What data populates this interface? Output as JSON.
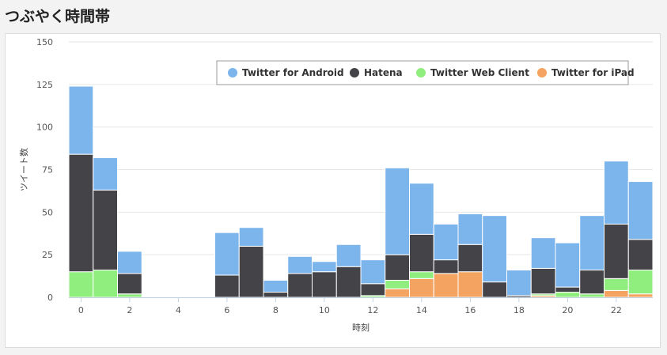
{
  "page": {
    "title": "つぶやく時間帯"
  },
  "chart_data": {
    "type": "bar",
    "stacked": true,
    "xlabel": "時刻",
    "ylabel": "ツイート数",
    "ylim": [
      0,
      150
    ],
    "yticks": [
      0,
      25,
      50,
      75,
      100,
      125,
      150
    ],
    "x": [
      0,
      1,
      2,
      3,
      4,
      5,
      6,
      7,
      8,
      9,
      10,
      11,
      12,
      13,
      14,
      15,
      16,
      17,
      18,
      19,
      20,
      21,
      22,
      23
    ],
    "xtick_labels": [
      0,
      2,
      4,
      6,
      8,
      10,
      12,
      14,
      16,
      18,
      20,
      22
    ],
    "grid": true,
    "legend_position": "top-right",
    "series": [
      {
        "name": "Twitter for iPad",
        "color": "#f4a460",
        "values": [
          0,
          0,
          0,
          0,
          0,
          0,
          0,
          0,
          0,
          0,
          0,
          0,
          0,
          5,
          11,
          14,
          15,
          0,
          0,
          1,
          0,
          0,
          4,
          2
        ]
      },
      {
        "name": "Twitter Web Client",
        "color": "#90ee7e",
        "values": [
          15,
          16,
          2,
          0,
          0,
          0,
          0,
          0,
          0,
          0,
          0,
          0,
          1,
          5,
          4,
          0,
          0,
          0,
          0,
          1,
          3,
          2,
          7,
          14
        ]
      },
      {
        "name": "Hatena",
        "color": "#434348",
        "values": [
          69,
          47,
          12,
          0,
          0,
          0,
          13,
          30,
          3,
          14,
          15,
          18,
          7,
          15,
          22,
          8,
          16,
          9,
          1,
          15,
          3,
          14,
          32,
          18
        ]
      },
      {
        "name": "Twitter for Android",
        "color": "#7cb5ec",
        "values": [
          40,
          19,
          13,
          0,
          0,
          0,
          25,
          11,
          7,
          10,
          6,
          13,
          14,
          51,
          30,
          21,
          18,
          39,
          15,
          18,
          26,
          32,
          37,
          34
        ]
      }
    ],
    "legend_order": [
      "Twitter for Android",
      "Hatena",
      "Twitter Web Client",
      "Twitter for iPad"
    ]
  }
}
